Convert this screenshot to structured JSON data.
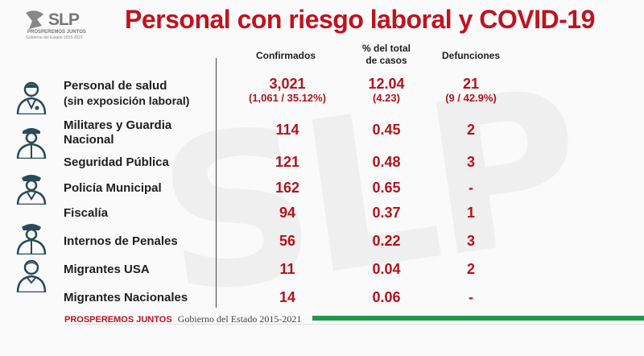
{
  "logo": {
    "text": "SLP",
    "tagline": "PROSPEREMOS JUNTOS",
    "subtext": "Gobierno del Estado 2015-2021"
  },
  "watermark": "SLP",
  "title": "Personal con riesgo laboral y COVID-19",
  "columns": {
    "confirmados": "Confirmados",
    "porcentaje_l1": "% del total",
    "porcentaje_l2": "de casos",
    "defunciones": "Defunciones"
  },
  "rows": [
    {
      "label_l1": "Personal de salud",
      "label_l2": "(sin exposición laboral)",
      "confirmados": "3,021",
      "confirmados_sub": "(1,061 / 35.12%)",
      "porcentaje": "12.04",
      "porcentaje_sub": "(4.23)",
      "defunciones": "21",
      "defunciones_sub": "(9 / 42.9%)",
      "icon": "doctor-icon"
    },
    {
      "label_l1": "Militares y Guardia",
      "label_l2": "Nacional",
      "confirmados": "114",
      "porcentaje": "0.45",
      "defunciones": "2",
      "icon": "soldier-icon"
    },
    {
      "label_l1": "Seguridad Pública",
      "confirmados": "121",
      "porcentaje": "0.48",
      "defunciones": "3"
    },
    {
      "label_l1": "Policía Municipal",
      "confirmados": "162",
      "porcentaje": "0.65",
      "defunciones": "-",
      "icon": "police-icon"
    },
    {
      "label_l1": "Fiscalía",
      "confirmados": "94",
      "porcentaje": "0.37",
      "defunciones": "1"
    },
    {
      "label_l1": "Internos de Penales",
      "confirmados": "56",
      "porcentaje": "0.22",
      "defunciones": "3",
      "icon": "officer-icon"
    },
    {
      "label_l1": "Migrantes USA",
      "confirmados": "11",
      "porcentaje": "0.04",
      "defunciones": "2",
      "icon": "person-icon"
    },
    {
      "label_l1": "Migrantes Nacionales",
      "confirmados": "14",
      "porcentaje": "0.06",
      "defunciones": "-"
    }
  ],
  "footer": {
    "tagline": "PROSPEREMOS JUNTOS",
    "government": "Gobierno del Estado 2015-2021"
  },
  "colors": {
    "accent_red": "#c1121f",
    "value_red": "#b5121b",
    "footer_green": "#1f9a48",
    "icon_teal": "#2a4a5a"
  }
}
